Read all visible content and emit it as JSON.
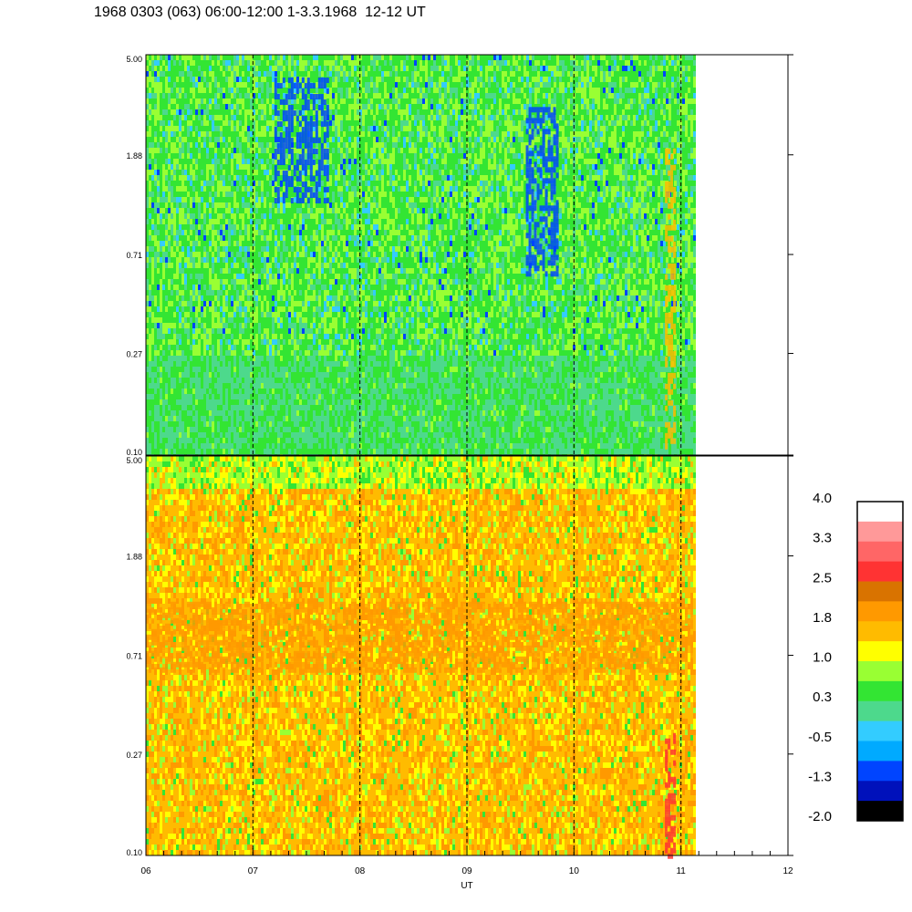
{
  "title": "1968 0303 (063) 06:00-12:00 1-3.3.1968  12-12 UT",
  "chart_data": [
    {
      "type": "heatmap",
      "panel": "top",
      "xlabel": "",
      "y_ticks": [
        "5.00",
        "1.88",
        "0.71",
        "0.27",
        "0.10"
      ],
      "y_scale": "log",
      "ylim": [
        0.1,
        5.0
      ],
      "xlim": [
        6,
        12
      ],
      "data_end_x": 11.12,
      "dashed_x": [
        7,
        8,
        9,
        10,
        11
      ],
      "dominant_colors": [
        "#33e533",
        "#99ff33",
        "#4dd98c",
        "#33ccff",
        "#0044ff"
      ],
      "features": [
        {
          "x": [
            7.2,
            7.7
          ],
          "y": [
            1.2,
            4.0
          ],
          "value": -1.3
        },
        {
          "x": [
            9.55,
            9.85
          ],
          "y": [
            0.6,
            3.0
          ],
          "value": -1.3
        },
        {
          "x": [
            10.85,
            10.95
          ],
          "y": [
            0.1,
            2.0
          ],
          "value": 1.5
        }
      ]
    },
    {
      "type": "heatmap",
      "panel": "bottom",
      "xlabel": "UT",
      "x_ticks": [
        "06",
        "07",
        "08",
        "09",
        "10",
        "11",
        "12"
      ],
      "y_ticks": [
        "5.00",
        "1.88",
        "0.71",
        "0.27",
        "0.10"
      ],
      "y_scale": "log",
      "ylim": [
        0.1,
        5.0
      ],
      "xlim": [
        6,
        12
      ],
      "data_end_x": 11.12,
      "dashed_x": [
        7,
        8,
        9,
        10,
        11
      ],
      "dominant_colors": [
        "#ffbb00",
        "#ff9900",
        "#ffff00",
        "#99ff33",
        "#33e533"
      ],
      "features": [
        {
          "x": [
            6.0,
            11.1
          ],
          "y": [
            0.6,
            1.2
          ],
          "value": 1.9
        },
        {
          "x": [
            10.85,
            10.95
          ],
          "y": [
            0.1,
            0.35
          ],
          "value": 2.6
        }
      ]
    }
  ],
  "colorbar": {
    "labels": [
      "4.0",
      "3.3",
      "2.5",
      "1.8",
      "1.0",
      "0.3",
      "-0.5",
      "-1.3",
      "-2.0"
    ],
    "colors": [
      "#ffffff",
      "#ff9999",
      "#ff6666",
      "#ff3333",
      "#d97300",
      "#ff9900",
      "#ffbb00",
      "#ffff00",
      "#99ff33",
      "#33e533",
      "#4dd98c",
      "#33ccff",
      "#00aaff",
      "#0044ff",
      "#0011bb",
      "#000000"
    ]
  }
}
